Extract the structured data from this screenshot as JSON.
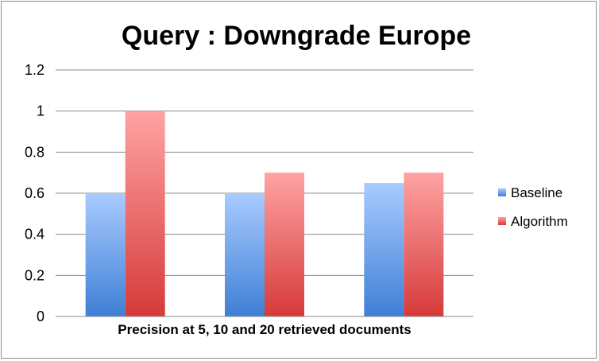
{
  "chart_data": {
    "type": "bar",
    "title": "Query : Downgrade Europe",
    "xlabel": "Precision at 5, 10 and 20 retrieved documents",
    "ylabel": "",
    "ylim": [
      0,
      1.2
    ],
    "yticks": [
      "0",
      "0.2",
      "0.4",
      "0.6",
      "0.8",
      "1",
      "1.2"
    ],
    "ytick_values": [
      0,
      0.2,
      0.4,
      0.6,
      0.8,
      1.0,
      1.2
    ],
    "categories": [
      "",
      "",
      ""
    ],
    "grid": true,
    "legend_position": "right",
    "series": [
      {
        "name": "Baseline",
        "values": [
          0.6,
          0.6,
          0.65
        ],
        "color_top": "#a9cbff",
        "color_bottom": "#3f7fd6"
      },
      {
        "name": "Algorithm",
        "values": [
          1.0,
          0.7,
          0.7
        ],
        "color_top": "#ffa3a3",
        "color_bottom": "#d63a3a"
      }
    ]
  }
}
